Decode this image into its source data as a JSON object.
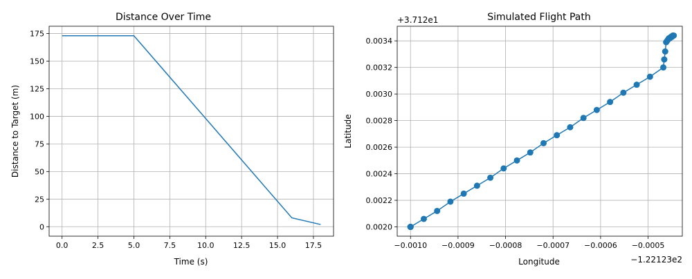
{
  "chart_data": [
    {
      "type": "line",
      "title": "Distance Over Time",
      "xlabel": "Time (s)",
      "ylabel": "Distance to Target (m)",
      "xlim": [
        -0.9,
        18.9
      ],
      "ylim": [
        -8.6,
        181.6
      ],
      "xticks": [
        0.0,
        2.5,
        5.0,
        7.5,
        10.0,
        12.5,
        15.0,
        17.5
      ],
      "xtick_labels": [
        "0.0",
        "2.5",
        "5.0",
        "7.5",
        "10.0",
        "12.5",
        "15.0",
        "17.5"
      ],
      "yticks": [
        0,
        25,
        50,
        75,
        100,
        125,
        150,
        175
      ],
      "ytick_labels": [
        "0",
        "25",
        "50",
        "75",
        "100",
        "125",
        "150",
        "175"
      ],
      "grid": true,
      "color": "#1f77b4",
      "series": [
        {
          "x": [
            0,
            5,
            16,
            18
          ],
          "y": [
            173,
            173,
            8,
            2
          ]
        }
      ]
    },
    {
      "type": "scatter",
      "title": "Simulated Flight Path",
      "xlabel": "Longitude",
      "ylabel": "Latitude",
      "x_offset_label": "−1.22123e2",
      "y_offset_label": "+3.712e1",
      "xlim": [
        -0.001028,
        -0.000428
      ],
      "ylim": [
        0.00193,
        0.00351
      ],
      "xticks": [
        -0.001,
        -0.0009,
        -0.0008,
        -0.0007,
        -0.0006,
        -0.0005
      ],
      "xtick_labels": [
        "−0.0010",
        "−0.0009",
        "−0.0008",
        "−0.0007",
        "−0.0006",
        "−0.0005"
      ],
      "yticks": [
        0.002,
        0.0022,
        0.0024,
        0.0026,
        0.0028,
        0.003,
        0.0032,
        0.0034
      ],
      "ytick_labels": [
        "0.0020",
        "0.0022",
        "0.0024",
        "0.0026",
        "0.0028",
        "0.0030",
        "0.0032",
        "0.0034"
      ],
      "grid": true,
      "color": "#1f77b4",
      "connected": true,
      "series": [
        {
          "x": [
            -0.001,
            -0.001,
            -0.001,
            -0.001,
            -0.001,
            -0.001,
            -0.000972,
            -0.000944,
            -0.000916,
            -0.000888,
            -0.00086,
            -0.000832,
            -0.000804,
            -0.000776,
            -0.000748,
            -0.00072,
            -0.000692,
            -0.000664,
            -0.000636,
            -0.000608,
            -0.00058,
            -0.000552,
            -0.000524,
            -0.000496,
            -0.000468,
            -0.000466,
            -0.000464,
            -0.000462,
            -0.00046,
            -0.000458,
            -0.000456,
            -0.000454,
            -0.000452,
            -0.00045,
            -0.000448,
            -0.000446
          ],
          "y": [
            0.002,
            0.002,
            0.002,
            0.002,
            0.002,
            0.002,
            0.00206,
            0.00212,
            0.00219,
            0.00225,
            0.00231,
            0.00237,
            0.00244,
            0.0025,
            0.00256,
            0.00263,
            0.00269,
            0.00275,
            0.00282,
            0.00288,
            0.00294,
            0.00301,
            0.00307,
            0.00313,
            0.0032,
            0.00326,
            0.00332,
            0.00339,
            0.0034,
            0.00341,
            0.00342,
            0.00342,
            0.00343,
            0.00343,
            0.00344,
            0.00344
          ]
        }
      ]
    }
  ]
}
